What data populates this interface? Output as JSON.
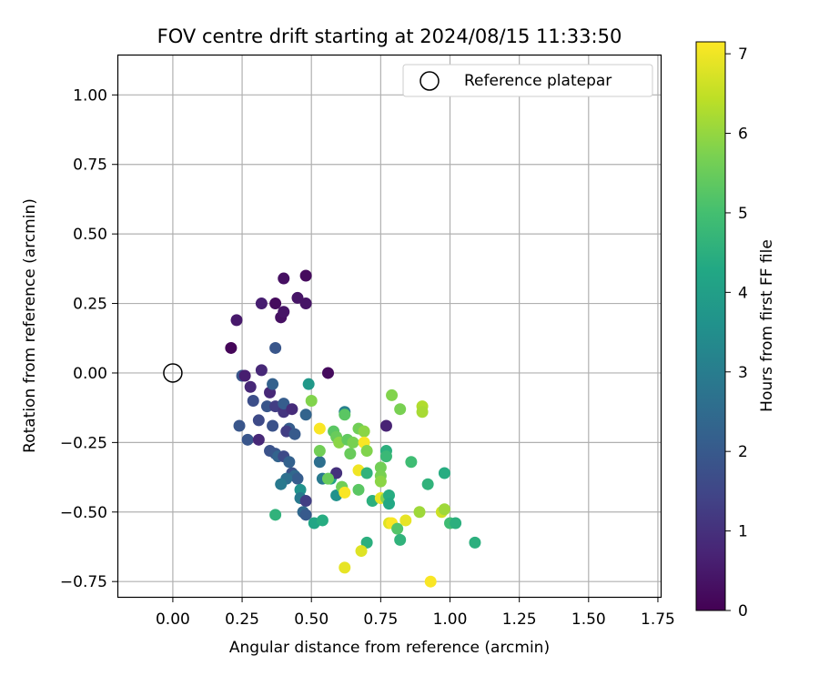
{
  "chart_data": {
    "type": "scatter",
    "title": "FOV centre drift starting at 2024/08/15 11:33:50",
    "xlabel": "Angular distance from reference (arcmin)",
    "ylabel": "Rotation from reference (arcmin)",
    "xlim": [
      -0.2,
      1.76
    ],
    "ylim": [
      -0.805,
      1.145
    ],
    "xticks": [
      0.0,
      0.25,
      0.5,
      0.75,
      1.0,
      1.25,
      1.5,
      1.75
    ],
    "xtick_labels": [
      "0.00",
      "0.25",
      "0.50",
      "0.75",
      "1.00",
      "1.25",
      "1.50",
      "1.75"
    ],
    "yticks": [
      -0.75,
      -0.5,
      -0.25,
      0.0,
      0.25,
      0.5,
      0.75,
      1.0
    ],
    "ytick_labels": [
      "−0.75",
      "−0.50",
      "−0.25",
      "0.00",
      "0.25",
      "0.50",
      "0.75",
      "1.00"
    ],
    "grid": true,
    "legend": {
      "placement": "upper right",
      "entries": [
        {
          "label": "Reference platepar",
          "marker": "open-circle"
        }
      ]
    },
    "colorbar": {
      "label": "Hours from first FF file",
      "colormap": "viridis",
      "range": [
        0,
        7.15
      ],
      "ticks": [
        0,
        1,
        2,
        3,
        4,
        5,
        6,
        7
      ],
      "tick_labels": [
        "0",
        "1",
        "2",
        "3",
        "4",
        "5",
        "6",
        "7"
      ]
    },
    "reference": {
      "x": 0.0,
      "y": 0.0
    },
    "series": [
      {
        "points": [
          [
            0.21,
            0.09,
            0.1
          ],
          [
            0.23,
            0.19,
            0.5
          ],
          [
            0.32,
            0.25,
            0.6
          ],
          [
            0.39,
            0.2,
            0.3
          ],
          [
            0.4,
            0.22,
            0.4
          ],
          [
            0.37,
            0.25,
            0.2
          ],
          [
            0.4,
            0.34,
            0.3
          ],
          [
            0.45,
            0.27,
            0.4
          ],
          [
            0.48,
            0.35,
            0.2
          ],
          [
            0.48,
            0.25,
            0.4
          ],
          [
            0.37,
            0.09,
            1.9
          ],
          [
            0.56,
            0.0,
            0.2
          ],
          [
            0.32,
            0.01,
            0.8
          ],
          [
            0.25,
            -0.01,
            1.9
          ],
          [
            0.26,
            -0.01,
            0.6
          ],
          [
            0.35,
            -0.07,
            0.8
          ],
          [
            0.28,
            -0.05,
            0.8
          ],
          [
            0.36,
            -0.04,
            2.2
          ],
          [
            0.29,
            -0.1,
            1.7
          ],
          [
            0.34,
            -0.12,
            1.9
          ],
          [
            0.37,
            -0.12,
            1.3
          ],
          [
            0.4,
            -0.14,
            1.1
          ],
          [
            0.4,
            -0.11,
            2.1
          ],
          [
            0.43,
            -0.13,
            0.9
          ],
          [
            0.48,
            -0.15,
            2.3
          ],
          [
            0.31,
            -0.17,
            1.6
          ],
          [
            0.24,
            -0.19,
            1.9
          ],
          [
            0.36,
            -0.19,
            1.8
          ],
          [
            0.42,
            -0.2,
            2.1
          ],
          [
            0.41,
            -0.21,
            1.3
          ],
          [
            0.44,
            -0.22,
            2.0
          ],
          [
            0.27,
            -0.24,
            1.9
          ],
          [
            0.31,
            -0.24,
            0.8
          ],
          [
            0.35,
            -0.28,
            1.8
          ],
          [
            0.37,
            -0.29,
            1.9
          ],
          [
            0.38,
            -0.3,
            2.3
          ],
          [
            0.4,
            -0.3,
            1.6
          ],
          [
            0.42,
            -0.32,
            2.2
          ],
          [
            0.43,
            -0.36,
            1.8
          ],
          [
            0.44,
            -0.37,
            2.4
          ],
          [
            0.45,
            -0.38,
            2.1
          ],
          [
            0.41,
            -0.38,
            2.6
          ],
          [
            0.39,
            -0.4,
            2.9
          ],
          [
            0.46,
            -0.42,
            3.6
          ],
          [
            0.46,
            -0.45,
            2.9
          ],
          [
            0.48,
            -0.46,
            1.3
          ],
          [
            0.47,
            -0.5,
            2.4
          ],
          [
            0.48,
            -0.51,
            2.0
          ],
          [
            0.37,
            -0.51,
            4.6
          ],
          [
            0.49,
            -0.04,
            3.8
          ],
          [
            0.51,
            -0.54,
            4.2
          ],
          [
            0.54,
            -0.53,
            4.4
          ],
          [
            0.53,
            -0.32,
            2.6
          ],
          [
            0.54,
            -0.38,
            2.9
          ],
          [
            0.57,
            -0.38,
            4.1
          ],
          [
            0.59,
            -0.36,
            1.0
          ],
          [
            0.59,
            -0.44,
            3.6
          ],
          [
            0.61,
            -0.41,
            4.2
          ],
          [
            0.62,
            -0.14,
            3.1
          ],
          [
            0.62,
            -0.15,
            5.3
          ],
          [
            0.5,
            -0.1,
            5.8
          ],
          [
            0.53,
            -0.28,
            5.6
          ],
          [
            0.53,
            -0.2,
            7.1
          ],
          [
            0.56,
            -0.38,
            5.5
          ],
          [
            0.58,
            -0.21,
            5.3
          ],
          [
            0.59,
            -0.23,
            5.5
          ],
          [
            0.6,
            -0.25,
            5.9
          ],
          [
            0.61,
            -0.41,
            5.6
          ],
          [
            0.62,
            -0.43,
            7.1
          ],
          [
            0.63,
            -0.24,
            5.4
          ],
          [
            0.64,
            -0.29,
            5.5
          ],
          [
            0.65,
            -0.25,
            5.7
          ],
          [
            0.67,
            -0.35,
            7.0
          ],
          [
            0.67,
            -0.42,
            5.3
          ],
          [
            0.67,
            -0.2,
            5.6
          ],
          [
            0.69,
            -0.21,
            5.9
          ],
          [
            0.69,
            -0.25,
            7.1
          ],
          [
            0.7,
            -0.28,
            5.8
          ],
          [
            0.7,
            -0.36,
            4.6
          ],
          [
            0.72,
            -0.46,
            4.5
          ],
          [
            0.7,
            -0.61,
            4.5
          ],
          [
            0.68,
            -0.64,
            6.8
          ],
          [
            0.62,
            -0.7,
            6.9
          ],
          [
            0.75,
            -0.34,
            5.6
          ],
          [
            0.75,
            -0.37,
            5.7
          ],
          [
            0.75,
            -0.39,
            5.9
          ],
          [
            0.75,
            -0.45,
            6.9
          ],
          [
            0.77,
            -0.45,
            5.8
          ],
          [
            0.77,
            -0.28,
            4.5
          ],
          [
            0.78,
            -0.44,
            4.4
          ],
          [
            0.78,
            -0.47,
            4.3
          ],
          [
            0.77,
            -0.3,
            4.8
          ],
          [
            0.77,
            -0.19,
            0.7
          ],
          [
            0.79,
            -0.08,
            5.8
          ],
          [
            0.78,
            -0.54,
            6.8
          ],
          [
            0.79,
            -0.54,
            7.1
          ],
          [
            0.81,
            -0.56,
            5.2
          ],
          [
            0.82,
            -0.6,
            4.6
          ],
          [
            0.82,
            -0.13,
            5.7
          ],
          [
            0.84,
            -0.53,
            6.9
          ],
          [
            0.86,
            -0.32,
            4.9
          ],
          [
            0.89,
            -0.5,
            6.1
          ],
          [
            0.9,
            -0.12,
            6.3
          ],
          [
            0.9,
            -0.14,
            6.2
          ],
          [
            0.92,
            -0.4,
            4.6
          ],
          [
            0.93,
            -0.75,
            7.1
          ],
          [
            0.97,
            -0.5,
            6.6
          ],
          [
            0.98,
            -0.36,
            4.4
          ],
          [
            0.98,
            -0.49,
            6.1
          ],
          [
            1.0,
            -0.54,
            4.9
          ],
          [
            1.02,
            -0.54,
            4.5
          ],
          [
            1.09,
            -0.61,
            4.5
          ]
        ]
      }
    ]
  }
}
